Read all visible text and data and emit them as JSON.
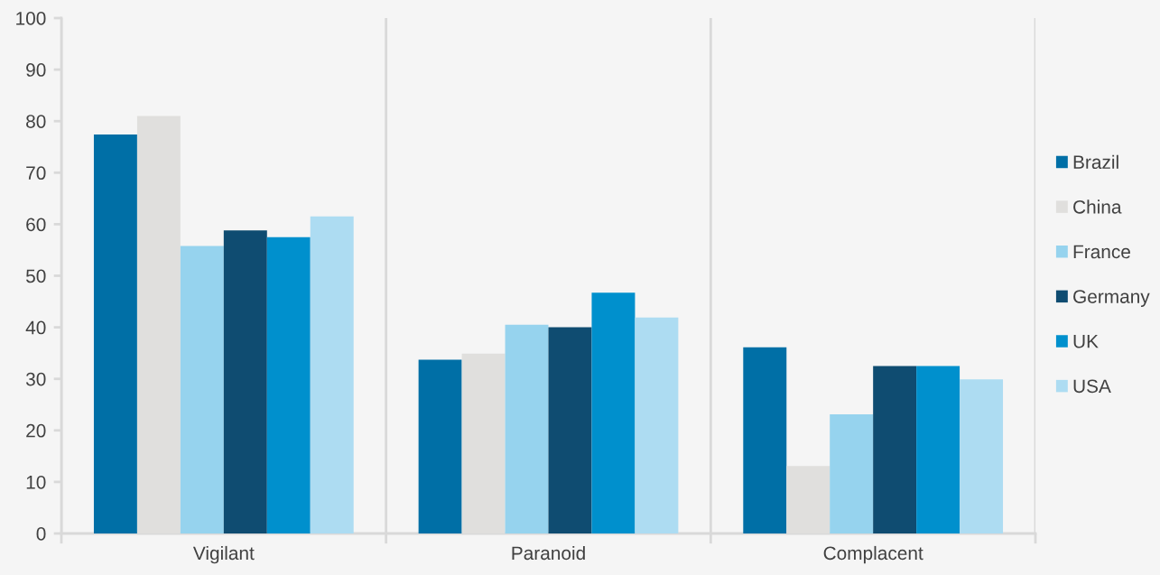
{
  "chart_data": {
    "type": "bar",
    "categories": [
      "Vigilant",
      "Paranoid",
      "Complacent"
    ],
    "series": [
      {
        "name": "Brazil",
        "color": "#006fa6",
        "values": [
          77.4,
          33.7,
          36.1
        ]
      },
      {
        "name": "China",
        "color": "#e0dfdd",
        "values": [
          81,
          34.9,
          13.1
        ]
      },
      {
        "name": "France",
        "color": "#96d3ee",
        "values": [
          55.8,
          40.5,
          23.1
        ]
      },
      {
        "name": "Germany",
        "color": "#0f4c71",
        "values": [
          58.8,
          40,
          32.5
        ]
      },
      {
        "name": "UK",
        "color": "#0090cd",
        "values": [
          57.5,
          46.7,
          32.5
        ]
      },
      {
        "name": "USA",
        "color": "#addcf2",
        "values": [
          61.5,
          41.9,
          29.9
        ]
      }
    ],
    "ylim": [
      0,
      100
    ],
    "yticks": [
      0,
      10,
      20,
      30,
      40,
      50,
      60,
      70,
      80,
      90,
      100
    ],
    "grid": "x",
    "legend": "right"
  }
}
